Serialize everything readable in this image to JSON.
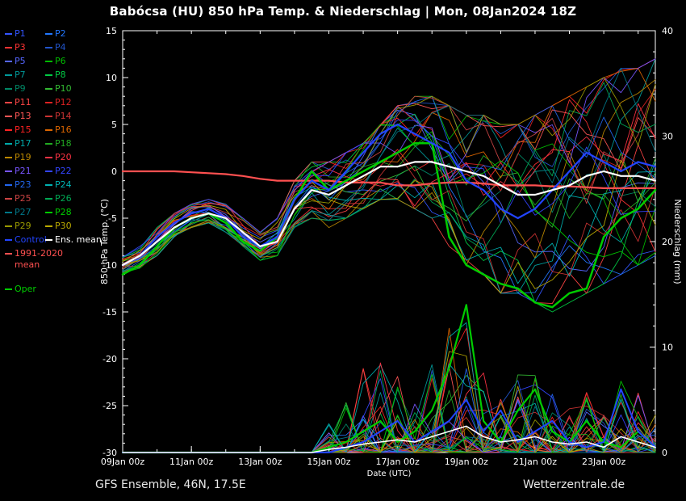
{
  "title": "Babócsa  (HU)  850 hPa Temp. & Niederschlag | Mon, 08Jan2024 18Z",
  "footer": {
    "left": "GFS Ensemble, 46N, 17.5E",
    "right": "Wetterzentrale.de"
  },
  "axes": {
    "x_label": "Date (UTC)",
    "y_left_label": "850 hPa Temp. (°C)",
    "y_right_label": "Niederschlag (mm)",
    "x_range_days": [
      0,
      15.5
    ],
    "y_left_range": [
      -30,
      15
    ],
    "y_right_range": [
      0,
      40
    ],
    "x_ticks": [
      {
        "day": 0,
        "label": "09Jan 00z"
      },
      {
        "day": 2,
        "label": "11Jan 00z"
      },
      {
        "day": 4,
        "label": "13Jan 00z"
      },
      {
        "day": 6,
        "label": "15Jan 00z"
      },
      {
        "day": 8,
        "label": "17Jan 00z"
      },
      {
        "day": 10,
        "label": "19Jan 00z"
      },
      {
        "day": 12,
        "label": "21Jan 00z"
      },
      {
        "day": 14,
        "label": "23Jan 00z"
      }
    ],
    "y_left_ticks": [
      15,
      10,
      5,
      0,
      -5,
      -10,
      -15,
      -20,
      -25,
      -30
    ],
    "y_right_ticks": [
      40,
      30,
      20,
      10,
      0
    ]
  },
  "legend": {
    "members": [
      {
        "label": "P1",
        "color": "#3355ff"
      },
      {
        "label": "P2",
        "color": "#2277ff"
      },
      {
        "label": "P3",
        "color": "#ff3333"
      },
      {
        "label": "P4",
        "color": "#2255cc"
      },
      {
        "label": "P5",
        "color": "#5566ff"
      },
      {
        "label": "P6",
        "color": "#00bb00"
      },
      {
        "label": "P7",
        "color": "#009999"
      },
      {
        "label": "P8",
        "color": "#00cc44"
      },
      {
        "label": "P9",
        "color": "#008866"
      },
      {
        "label": "P10",
        "color": "#33bb33"
      },
      {
        "label": "P11",
        "color": "#ff4444"
      },
      {
        "label": "P12",
        "color": "#dd2222"
      },
      {
        "label": "P13",
        "color": "#ff5555"
      },
      {
        "label": "P14",
        "color": "#cc3333"
      },
      {
        "label": "P15",
        "color": "#ff2222"
      },
      {
        "label": "P16",
        "color": "#dd6600"
      },
      {
        "label": "P17",
        "color": "#00aaaa"
      },
      {
        "label": "P18",
        "color": "#22aa22"
      },
      {
        "label": "P19",
        "color": "#bb8800"
      },
      {
        "label": "P20",
        "color": "#ff3344"
      },
      {
        "label": "P21",
        "color": "#7755ff"
      },
      {
        "label": "P22",
        "color": "#3344ff"
      },
      {
        "label": "P23",
        "color": "#2266ee"
      },
      {
        "label": "P24",
        "color": "#00b3b3"
      },
      {
        "label": "P25",
        "color": "#cc4444"
      },
      {
        "label": "P26",
        "color": "#00aa55"
      },
      {
        "label": "P27",
        "color": "#007788"
      },
      {
        "label": "P28",
        "color": "#00cc00"
      },
      {
        "label": "P29",
        "color": "#999900"
      },
      {
        "label": "P30",
        "color": "#bbaa00"
      }
    ],
    "control": {
      "label": "Control",
      "color": "#2244ff"
    },
    "ens_mean": {
      "label": "Ens. mean",
      "color": "#ffffff"
    },
    "clim": {
      "label": "1991-2020 mean",
      "label_line1": "1991-2020",
      "label_line2": "mean",
      "color": "#ff5050"
    },
    "oper": {
      "label": "Oper",
      "color": "#00cc00"
    }
  },
  "chart_data": {
    "type": "line",
    "x_unit": "days from 09Jan2024 00z",
    "x_days": [
      0,
      0.5,
      1,
      1.5,
      2,
      2.5,
      3,
      3.5,
      4,
      4.5,
      5,
      5.5,
      6,
      6.5,
      7,
      7.5,
      8,
      8.5,
      9,
      9.5,
      10,
      10.5,
      11,
      11.5,
      12,
      12.5,
      13,
      13.5,
      14,
      14.5,
      15,
      15.5
    ],
    "series": {
      "ens_mean_temp": [
        -10,
        -9,
        -7.5,
        -6,
        -5,
        -4.5,
        -5,
        -6.5,
        -8,
        -7.5,
        -4,
        -2,
        -2.5,
        -1.5,
        -0.5,
        0.5,
        0.5,
        1,
        1,
        0.5,
        0,
        -0.5,
        -1.5,
        -2.5,
        -2.5,
        -2,
        -1.5,
        -0.5,
        0,
        -0.5,
        -0.5,
        -1
      ],
      "control_temp": [
        -10,
        -9,
        -7,
        -5.5,
        -4.5,
        -4,
        -5,
        -7,
        -8,
        -7,
        -3,
        -1,
        -2,
        0,
        2,
        4,
        5,
        4,
        3,
        2,
        -1,
        -2,
        -4,
        -5,
        -4,
        -2,
        0,
        2,
        1,
        0,
        1,
        0.5
      ],
      "oper_temp": [
        -11,
        -10,
        -8,
        -6,
        -5,
        -4.5,
        -5.5,
        -7.5,
        -8.5,
        -7,
        -3,
        0,
        -2,
        -1,
        0,
        1,
        2,
        3,
        3,
        -7,
        -10,
        -11,
        -12,
        -12.5,
        -14,
        -14.5,
        -13,
        -12.5,
        -7,
        -5,
        -4,
        -2
      ],
      "clim_temp": [
        0,
        0,
        0,
        0,
        -0.1,
        -0.2,
        -0.3,
        -0.5,
        -0.8,
        -1,
        -1,
        -1,
        -1,
        -1.2,
        -1.2,
        -1.2,
        -1.5,
        -1.5,
        -1.3,
        -1.2,
        -1.2,
        -1.3,
        -1.5,
        -1.5,
        -1.5,
        -1.6,
        -1.6,
        -1.7,
        -1.8,
        -1.8,
        -1.8,
        -1.8
      ],
      "ens_mean_precip": [
        0,
        0,
        0,
        0,
        0,
        0,
        0,
        0,
        0,
        0,
        0,
        0,
        0.3,
        0.5,
        0.8,
        1,
        1.2,
        1,
        1.5,
        2,
        2.5,
        1.5,
        1,
        1.2,
        1.5,
        1,
        0.8,
        1,
        0.5,
        1.5,
        1,
        0.5
      ],
      "control_precip": [
        0,
        0,
        0,
        0,
        0,
        0,
        0,
        0,
        0,
        0,
        0,
        0,
        0,
        0.5,
        1,
        2,
        3,
        1,
        2,
        3,
        5,
        2,
        4,
        1,
        2,
        3,
        1,
        0.5,
        1,
        6,
        2,
        0.5
      ],
      "oper_precip": [
        0,
        0,
        0,
        0,
        0,
        0,
        0,
        0,
        0,
        0,
        0,
        0,
        0.5,
        1,
        2,
        3,
        1,
        2,
        4,
        8,
        14,
        3,
        1,
        4,
        6,
        2,
        1,
        3,
        1,
        0.5,
        2,
        0.5
      ]
    },
    "members_envelope_temp": {
      "min": [
        -11,
        -10.5,
        -9,
        -7,
        -6,
        -5.5,
        -6.5,
        -8,
        -9.5,
        -9,
        -6,
        -5,
        -6,
        -5,
        -4,
        -3,
        -3,
        -4,
        -5,
        -8,
        -10,
        -11,
        -13,
        -13,
        -14,
        -15,
        -14,
        -13,
        -12,
        -11,
        -10,
        -9
      ],
      "max": [
        -9,
        -8,
        -6,
        -4.5,
        -3.5,
        -3,
        -3.5,
        -5,
        -6.5,
        -5,
        -1,
        1,
        1,
        2,
        3,
        5,
        7,
        8,
        8,
        7,
        6,
        6,
        5,
        5,
        6,
        7,
        8,
        9,
        10,
        11,
        11,
        12
      ]
    },
    "members_precip_max": [
      0,
      0,
      0,
      0,
      0,
      0,
      0,
      0,
      0,
      0,
      0,
      0,
      3,
      5,
      8,
      10,
      8,
      6,
      10,
      12,
      14,
      8,
      6,
      8,
      8,
      6,
      5,
      6,
      4,
      8,
      6,
      4
    ],
    "seed": 12
  }
}
